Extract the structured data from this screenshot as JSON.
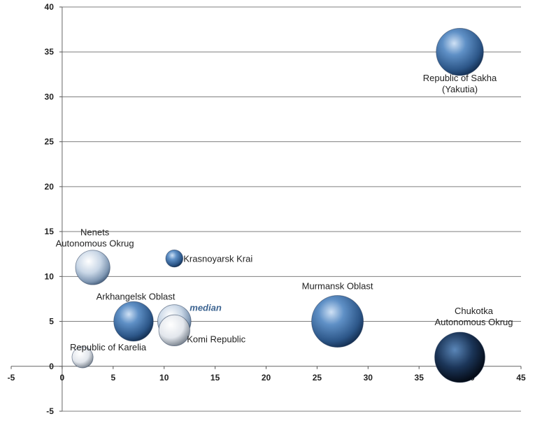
{
  "chart_data": {
    "type": "bubble",
    "title": "",
    "xlabel": "",
    "ylabel": "",
    "xlim": [
      -5,
      45
    ],
    "ylim": [
      -5,
      40
    ],
    "x_ticks": [
      "-5",
      "0",
      "5",
      "10",
      "15",
      "20",
      "25",
      "30",
      "35",
      "40",
      "45"
    ],
    "y_ticks": [
      "-5",
      "0",
      "5",
      "10",
      "15",
      "20",
      "25",
      "30",
      "35",
      "40"
    ],
    "grid": "horizontal",
    "legend": "none",
    "points": [
      {
        "label": [
          "Republic of Sakha",
          "(Yakutia)"
        ],
        "x": 39,
        "y": 35,
        "size": 30,
        "style": "mid"
      },
      {
        "label": [
          "Nenets",
          "Autonomous Okrug"
        ],
        "x": 3,
        "y": 11,
        "size": 16,
        "style": "light"
      },
      {
        "label": [
          "Krasnoyarsk Krai"
        ],
        "x": 11,
        "y": 12,
        "size": 4,
        "style": "mid"
      },
      {
        "label": [
          "Arkhangelsk Oblast"
        ],
        "x": 7,
        "y": 5,
        "size": 21,
        "style": "mid"
      },
      {
        "label": [
          "median"
        ],
        "x": 11,
        "y": 5,
        "size": 15,
        "style": "light",
        "italic": true
      },
      {
        "label": [
          "Komi Republic"
        ],
        "x": 11,
        "y": 4,
        "size": 13,
        "style": "pale"
      },
      {
        "label": [
          "Republic of Karelia"
        ],
        "x": 2,
        "y": 1,
        "size": 6,
        "style": "pale"
      },
      {
        "label": [
          "Murmansk Oblast"
        ],
        "x": 27,
        "y": 5,
        "size": 36,
        "style": "mid"
      },
      {
        "label": [
          "Chukotka",
          "Autonomous Okrug"
        ],
        "x": 39,
        "y": 1,
        "size": 34,
        "style": "dark"
      }
    ],
    "colors": {
      "dark": "#0f2540",
      "mid": "#3d6fa8",
      "light": "#b8c8da",
      "pale": "#dde3ea",
      "grid": "#7f7f7f"
    }
  }
}
